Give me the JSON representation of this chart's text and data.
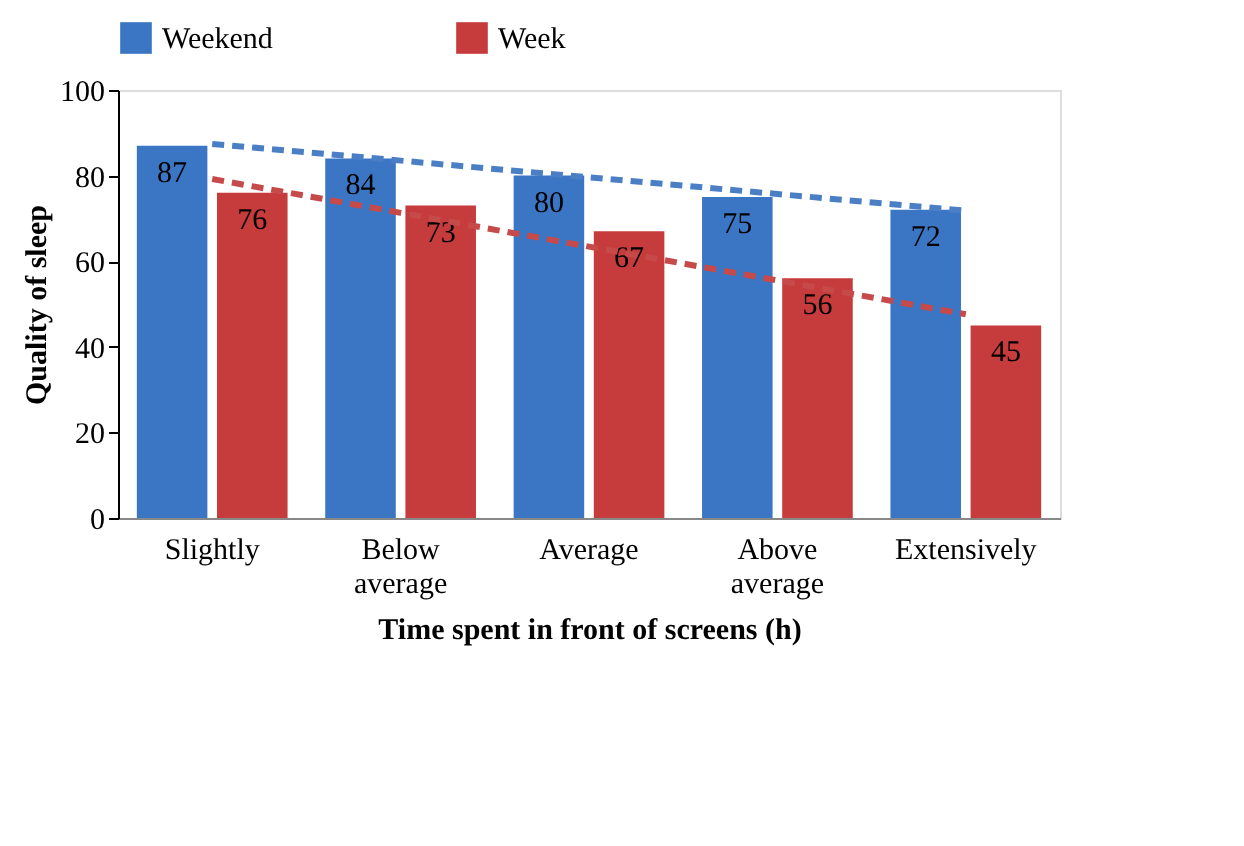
{
  "chart_data": {
    "type": "bar",
    "xlabel": "Time spent in front of screens  (h)",
    "ylabel": "Quality of sleep",
    "categories": [
      "Slightly",
      "Below average",
      "Average",
      "Above average",
      "Extensively"
    ],
    "series": [
      {
        "name": "Weekend",
        "color": "#3b76c4",
        "values": [
          87,
          84,
          80,
          75,
          72
        ],
        "value_labels": [
          "87",
          "84",
          "80",
          "75",
          "72"
        ]
      },
      {
        "name": "Week",
        "color": "#c63b3b",
        "values": [
          76,
          73,
          67,
          56,
          45
        ],
        "value_labels": [
          "76",
          "73",
          "67",
          "56",
          "45"
        ]
      },
      {
        "type": "line",
        "line_style": "dashed",
        "color": "#4a7fc6",
        "values": [
          87.4,
          83.5,
          79.6,
          75.7,
          71.8
        ]
      },
      {
        "type": "line",
        "line_style": "dashed",
        "color": "#c64a4a",
        "values": [
          79.2,
          71.3,
          63.4,
          55.5,
          47.6
        ]
      }
    ],
    "ylim": [
      0,
      100
    ],
    "yticks": [
      0,
      20,
      40,
      60,
      80,
      100
    ],
    "grid": false,
    "legend": "top"
  }
}
